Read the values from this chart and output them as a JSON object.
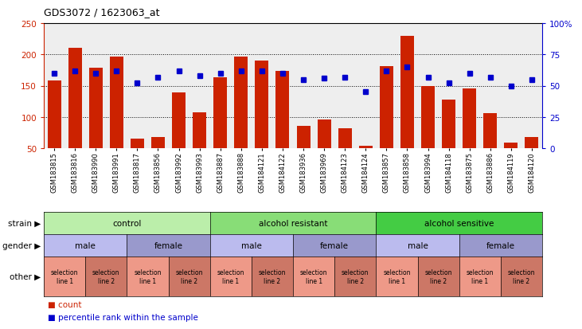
{
  "title": "GDS3072 / 1623063_at",
  "samples": [
    "GSM183815",
    "GSM183816",
    "GSM183990",
    "GSM183991",
    "GSM183817",
    "GSM183856",
    "GSM183992",
    "GSM183993",
    "GSM183887",
    "GSM183888",
    "GSM184121",
    "GSM184122",
    "GSM183936",
    "GSM183969",
    "GSM184123",
    "GSM184124",
    "GSM183857",
    "GSM183858",
    "GSM183994",
    "GSM184118",
    "GSM183875",
    "GSM183886",
    "GSM184119",
    "GSM184120"
  ],
  "counts": [
    158,
    210,
    179,
    196,
    65,
    68,
    139,
    107,
    164,
    196,
    190,
    174,
    86,
    96,
    82,
    54,
    181,
    229,
    150,
    128,
    146,
    106,
    59,
    68
  ],
  "percentiles": [
    60,
    62,
    60,
    62,
    52,
    57,
    62,
    58,
    60,
    62,
    62,
    60,
    55,
    56,
    57,
    45,
    62,
    65,
    57,
    52,
    60,
    57,
    50,
    55
  ],
  "ylim_left": [
    50,
    250
  ],
  "ylim_right": [
    0,
    100
  ],
  "yticks_left": [
    50,
    100,
    150,
    200,
    250
  ],
  "yticks_right": [
    0,
    25,
    50,
    75,
    100
  ],
  "ytick_labels_right": [
    "0",
    "25",
    "50",
    "75",
    "100%"
  ],
  "bar_color": "#cc2200",
  "dot_color": "#0000cc",
  "strain_groups": [
    {
      "label": "control",
      "start": 0,
      "end": 8,
      "color": "#bbeeaa"
    },
    {
      "label": "alcohol resistant",
      "start": 8,
      "end": 16,
      "color": "#88dd77"
    },
    {
      "label": "alcohol sensitive",
      "start": 16,
      "end": 24,
      "color": "#44cc44"
    }
  ],
  "gender_groups": [
    {
      "label": "male",
      "start": 0,
      "end": 4,
      "color": "#bbbbee"
    },
    {
      "label": "female",
      "start": 4,
      "end": 8,
      "color": "#9999cc"
    },
    {
      "label": "male",
      "start": 8,
      "end": 12,
      "color": "#bbbbee"
    },
    {
      "label": "female",
      "start": 12,
      "end": 16,
      "color": "#9999cc"
    },
    {
      "label": "male",
      "start": 16,
      "end": 20,
      "color": "#bbbbee"
    },
    {
      "label": "female",
      "start": 20,
      "end": 24,
      "color": "#9999cc"
    }
  ],
  "other_groups": [
    {
      "label": "selection\nline 1",
      "start": 0,
      "end": 2,
      "color": "#ee9988"
    },
    {
      "label": "selection\nline 2",
      "start": 2,
      "end": 4,
      "color": "#cc7766"
    },
    {
      "label": "selection\nline 1",
      "start": 4,
      "end": 6,
      "color": "#ee9988"
    },
    {
      "label": "selection\nline 2",
      "start": 6,
      "end": 8,
      "color": "#cc7766"
    },
    {
      "label": "selection\nline 1",
      "start": 8,
      "end": 10,
      "color": "#ee9988"
    },
    {
      "label": "selection\nline 2",
      "start": 10,
      "end": 12,
      "color": "#cc7766"
    },
    {
      "label": "selection\nline 1",
      "start": 12,
      "end": 14,
      "color": "#ee9988"
    },
    {
      "label": "selection\nline 2",
      "start": 14,
      "end": 16,
      "color": "#cc7766"
    },
    {
      "label": "selection\nline 1",
      "start": 16,
      "end": 18,
      "color": "#ee9988"
    },
    {
      "label": "selection\nline 2",
      "start": 18,
      "end": 20,
      "color": "#cc7766"
    },
    {
      "label": "selection\nline 1",
      "start": 20,
      "end": 22,
      "color": "#ee9988"
    },
    {
      "label": "selection\nline 2",
      "start": 22,
      "end": 24,
      "color": "#cc7766"
    }
  ],
  "bg_color": "#ffffff",
  "plot_bg_color": "#eeeeee"
}
